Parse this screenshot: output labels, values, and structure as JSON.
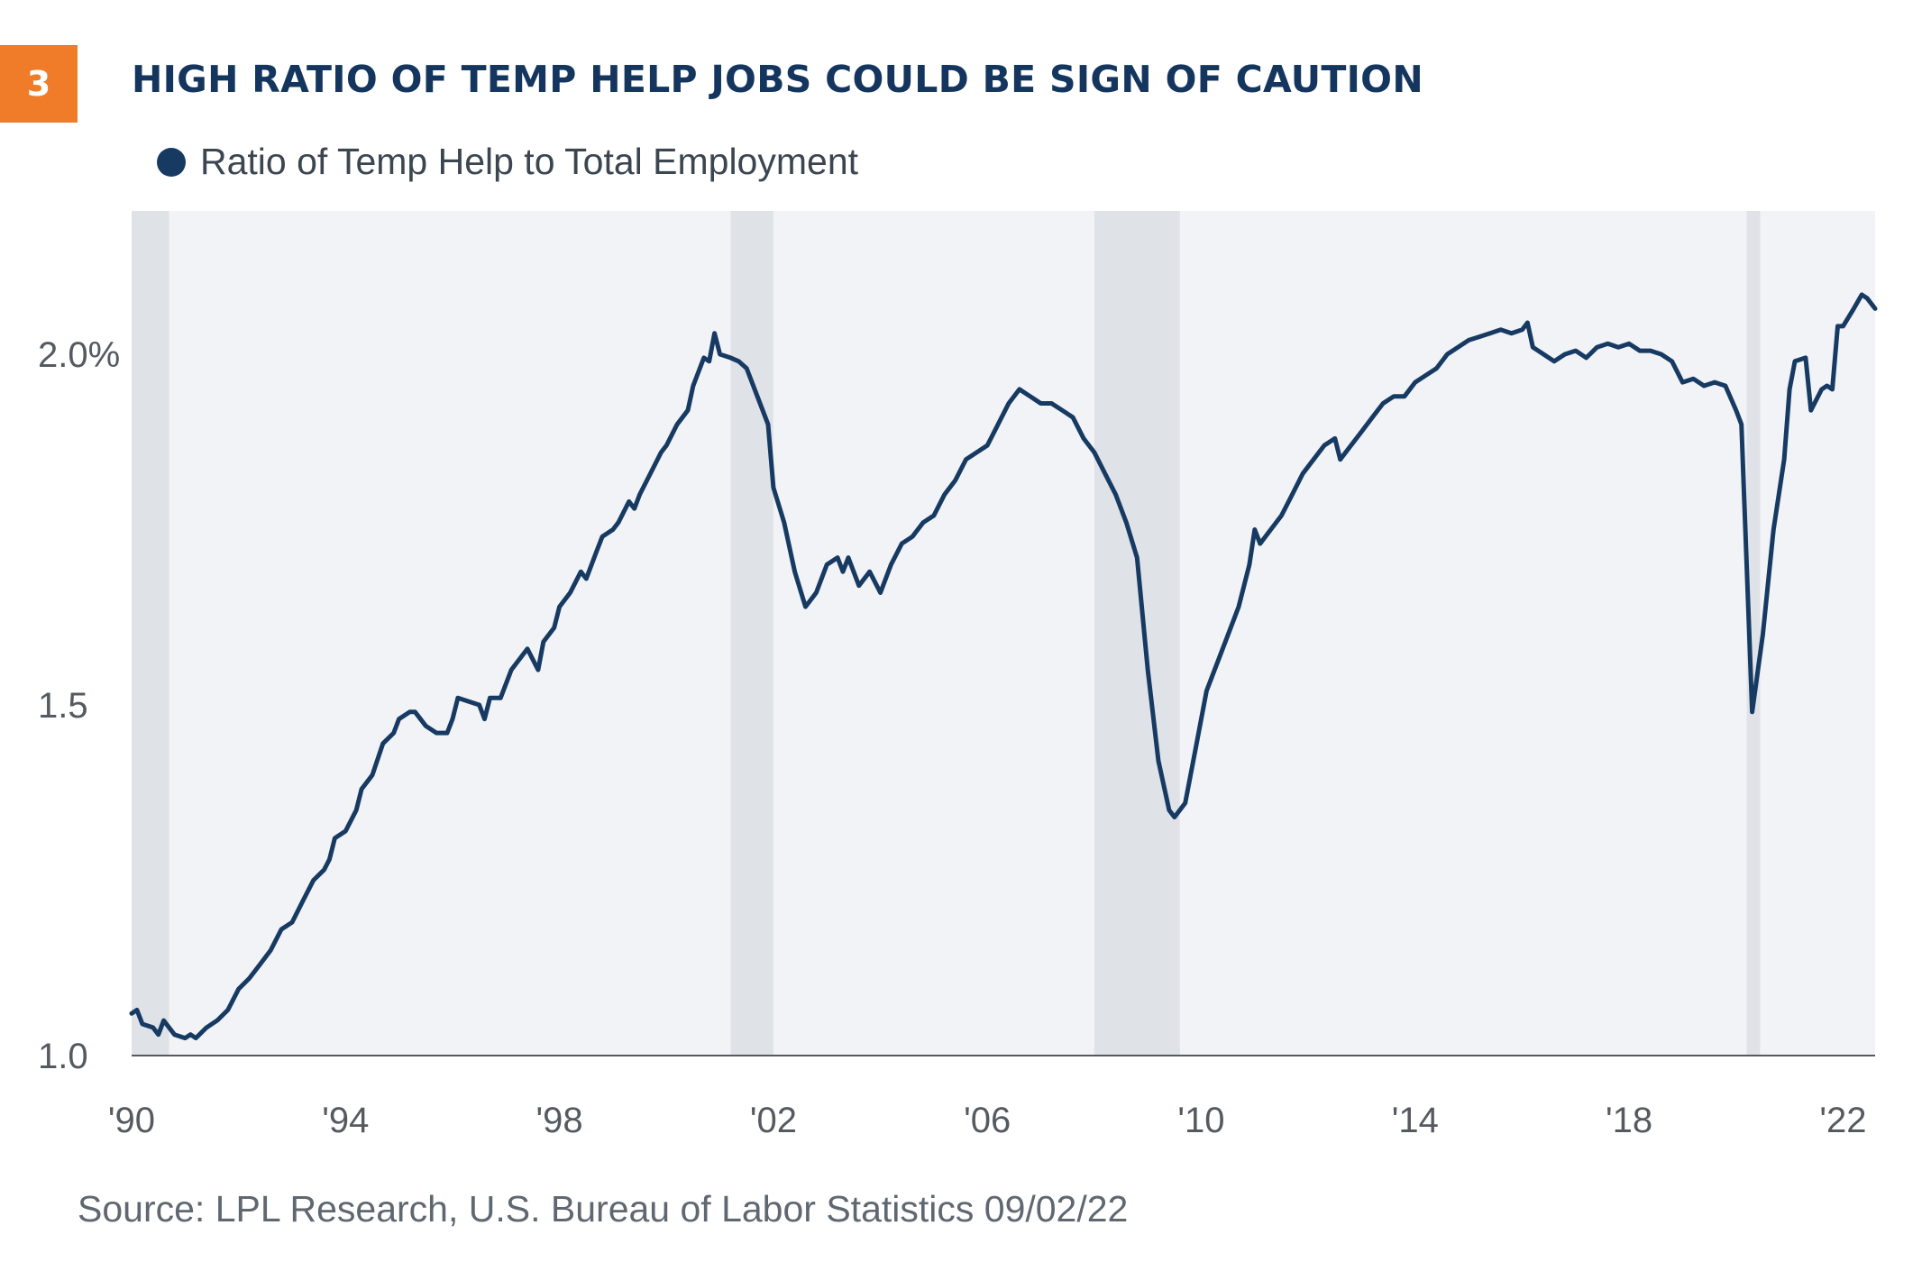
{
  "badge": {
    "number": "3"
  },
  "title": "HIGH RATIO OF TEMP HELP JOBS COULD BE SIGN OF CAUTION",
  "source": "Source: LPL Research, U.S. Bureau of Labor Statistics 09/02/22",
  "colors": {
    "badge": "#f07c2a",
    "title": "#14365e",
    "line": "#173a63",
    "plot_bg": "#f2f3f6",
    "recession": "#dfe2e7",
    "axis": "#555a60",
    "tick_label": "#555a60"
  },
  "chart_data": {
    "type": "line",
    "title": "HIGH RATIO OF TEMP HELP JOBS COULD BE SIGN OF CAUTION",
    "xlabel": "",
    "ylabel": "",
    "xlim": [
      1990.0,
      2022.6
    ],
    "ylim": [
      1.0,
      2.2
    ],
    "grid": false,
    "legend": "top-left",
    "y_ticks": [
      {
        "value": 1.0,
        "label": "1.0"
      },
      {
        "value": 1.5,
        "label": "1.5"
      },
      {
        "value": 2.0,
        "label": "2.0%"
      }
    ],
    "x_ticks": [
      {
        "value": 1990,
        "label": "'90"
      },
      {
        "value": 1994,
        "label": "'94"
      },
      {
        "value": 1998,
        "label": "'98"
      },
      {
        "value": 2002,
        "label": "'02"
      },
      {
        "value": 2006,
        "label": "'06"
      },
      {
        "value": 2010,
        "label": "'10"
      },
      {
        "value": 2014,
        "label": "'14"
      },
      {
        "value": 2018,
        "label": "'18"
      },
      {
        "value": 2022,
        "label": "'22"
      }
    ],
    "recessions": [
      {
        "start": 1990.0,
        "end": 1990.7
      },
      {
        "start": 2001.2,
        "end": 2002.0
      },
      {
        "start": 2008.0,
        "end": 2009.6
      },
      {
        "start": 2020.2,
        "end": 2020.45
      }
    ],
    "series": [
      {
        "name": "Ratio of Temp Help to Total Employment",
        "points": [
          [
            1990.0,
            1.06
          ],
          [
            1990.1,
            1.065
          ],
          [
            1990.2,
            1.045
          ],
          [
            1990.4,
            1.04
          ],
          [
            1990.5,
            1.03
          ],
          [
            1990.6,
            1.05
          ],
          [
            1990.8,
            1.03
          ],
          [
            1991.0,
            1.025
          ],
          [
            1991.1,
            1.03
          ],
          [
            1991.2,
            1.025
          ],
          [
            1991.4,
            1.04
          ],
          [
            1991.6,
            1.05
          ],
          [
            1991.8,
            1.065
          ],
          [
            1992.0,
            1.095
          ],
          [
            1992.2,
            1.11
          ],
          [
            1992.4,
            1.13
          ],
          [
            1992.6,
            1.15
          ],
          [
            1992.8,
            1.18
          ],
          [
            1993.0,
            1.19
          ],
          [
            1993.2,
            1.22
          ],
          [
            1993.4,
            1.25
          ],
          [
            1993.6,
            1.265
          ],
          [
            1993.7,
            1.28
          ],
          [
            1993.8,
            1.31
          ],
          [
            1994.0,
            1.32
          ],
          [
            1994.2,
            1.35
          ],
          [
            1994.3,
            1.38
          ],
          [
            1994.5,
            1.4
          ],
          [
            1994.7,
            1.445
          ],
          [
            1994.9,
            1.46
          ],
          [
            1995.0,
            1.48
          ],
          [
            1995.2,
            1.49
          ],
          [
            1995.3,
            1.49
          ],
          [
            1995.5,
            1.47
          ],
          [
            1995.7,
            1.46
          ],
          [
            1995.9,
            1.46
          ],
          [
            1996.0,
            1.48
          ],
          [
            1996.1,
            1.51
          ],
          [
            1996.3,
            1.505
          ],
          [
            1996.5,
            1.5
          ],
          [
            1996.6,
            1.48
          ],
          [
            1996.7,
            1.51
          ],
          [
            1996.9,
            1.51
          ],
          [
            1997.1,
            1.55
          ],
          [
            1997.3,
            1.57
          ],
          [
            1997.4,
            1.58
          ],
          [
            1997.6,
            1.55
          ],
          [
            1997.7,
            1.59
          ],
          [
            1997.9,
            1.61
          ],
          [
            1998.0,
            1.64
          ],
          [
            1998.2,
            1.66
          ],
          [
            1998.4,
            1.69
          ],
          [
            1998.5,
            1.68
          ],
          [
            1998.6,
            1.7
          ],
          [
            1998.7,
            1.72
          ],
          [
            1998.8,
            1.74
          ],
          [
            1999.0,
            1.75
          ],
          [
            1999.1,
            1.76
          ],
          [
            1999.3,
            1.79
          ],
          [
            1999.4,
            1.78
          ],
          [
            1999.5,
            1.8
          ],
          [
            1999.7,
            1.83
          ],
          [
            1999.9,
            1.86
          ],
          [
            2000.0,
            1.87
          ],
          [
            2000.2,
            1.9
          ],
          [
            2000.4,
            1.92
          ],
          [
            2000.5,
            1.955
          ],
          [
            2000.7,
            1.995
          ],
          [
            2000.8,
            1.99
          ],
          [
            2000.9,
            2.03
          ],
          [
            2001.0,
            2.0
          ],
          [
            2001.2,
            1.995
          ],
          [
            2001.35,
            1.99
          ],
          [
            2001.5,
            1.98
          ],
          [
            2001.7,
            1.94
          ],
          [
            2001.9,
            1.9
          ],
          [
            2002.0,
            1.81
          ],
          [
            2002.2,
            1.76
          ],
          [
            2002.4,
            1.69
          ],
          [
            2002.6,
            1.64
          ],
          [
            2002.8,
            1.66
          ],
          [
            2003.0,
            1.7
          ],
          [
            2003.2,
            1.71
          ],
          [
            2003.3,
            1.69
          ],
          [
            2003.4,
            1.71
          ],
          [
            2003.6,
            1.67
          ],
          [
            2003.8,
            1.69
          ],
          [
            2004.0,
            1.66
          ],
          [
            2004.2,
            1.7
          ],
          [
            2004.4,
            1.73
          ],
          [
            2004.6,
            1.74
          ],
          [
            2004.8,
            1.76
          ],
          [
            2005.0,
            1.77
          ],
          [
            2005.2,
            1.8
          ],
          [
            2005.4,
            1.82
          ],
          [
            2005.6,
            1.85
          ],
          [
            2005.8,
            1.86
          ],
          [
            2006.0,
            1.87
          ],
          [
            2006.2,
            1.9
          ],
          [
            2006.4,
            1.93
          ],
          [
            2006.6,
            1.95
          ],
          [
            2006.8,
            1.94
          ],
          [
            2007.0,
            1.93
          ],
          [
            2007.2,
            1.93
          ],
          [
            2007.4,
            1.92
          ],
          [
            2007.6,
            1.91
          ],
          [
            2007.8,
            1.88
          ],
          [
            2008.0,
            1.86
          ],
          [
            2008.2,
            1.83
          ],
          [
            2008.4,
            1.8
          ],
          [
            2008.6,
            1.76
          ],
          [
            2008.8,
            1.71
          ],
          [
            2009.0,
            1.55
          ],
          [
            2009.2,
            1.42
          ],
          [
            2009.4,
            1.35
          ],
          [
            2009.5,
            1.34
          ],
          [
            2009.7,
            1.36
          ],
          [
            2009.9,
            1.44
          ],
          [
            2010.1,
            1.52
          ],
          [
            2010.3,
            1.56
          ],
          [
            2010.5,
            1.6
          ],
          [
            2010.7,
            1.64
          ],
          [
            2010.9,
            1.7
          ],
          [
            2011.0,
            1.75
          ],
          [
            2011.1,
            1.73
          ],
          [
            2011.3,
            1.75
          ],
          [
            2011.5,
            1.77
          ],
          [
            2011.7,
            1.8
          ],
          [
            2011.9,
            1.83
          ],
          [
            2012.1,
            1.85
          ],
          [
            2012.3,
            1.87
          ],
          [
            2012.5,
            1.88
          ],
          [
            2012.6,
            1.85
          ],
          [
            2012.8,
            1.87
          ],
          [
            2013.0,
            1.89
          ],
          [
            2013.2,
            1.91
          ],
          [
            2013.4,
            1.93
          ],
          [
            2013.6,
            1.94
          ],
          [
            2013.8,
            1.94
          ],
          [
            2014.0,
            1.96
          ],
          [
            2014.2,
            1.97
          ],
          [
            2014.4,
            1.98
          ],
          [
            2014.6,
            2.0
          ],
          [
            2014.8,
            2.01
          ],
          [
            2015.0,
            2.02
          ],
          [
            2015.2,
            2.025
          ],
          [
            2015.4,
            2.03
          ],
          [
            2015.6,
            2.035
          ],
          [
            2015.8,
            2.03
          ],
          [
            2016.0,
            2.035
          ],
          [
            2016.1,
            2.045
          ],
          [
            2016.2,
            2.01
          ],
          [
            2016.4,
            2.0
          ],
          [
            2016.6,
            1.99
          ],
          [
            2016.8,
            2.0
          ],
          [
            2017.0,
            2.005
          ],
          [
            2017.2,
            1.995
          ],
          [
            2017.4,
            2.01
          ],
          [
            2017.6,
            2.015
          ],
          [
            2017.8,
            2.01
          ],
          [
            2018.0,
            2.015
          ],
          [
            2018.2,
            2.005
          ],
          [
            2018.4,
            2.005
          ],
          [
            2018.6,
            2.0
          ],
          [
            2018.8,
            1.99
          ],
          [
            2019.0,
            1.96
          ],
          [
            2019.2,
            1.965
          ],
          [
            2019.4,
            1.955
          ],
          [
            2019.6,
            1.96
          ],
          [
            2019.8,
            1.955
          ],
          [
            2020.0,
            1.92
          ],
          [
            2020.1,
            1.9
          ],
          [
            2020.3,
            1.49
          ],
          [
            2020.5,
            1.6
          ],
          [
            2020.7,
            1.75
          ],
          [
            2020.9,
            1.85
          ],
          [
            2021.0,
            1.95
          ],
          [
            2021.1,
            1.99
          ],
          [
            2021.3,
            1.995
          ],
          [
            2021.4,
            1.92
          ],
          [
            2021.6,
            1.95
          ],
          [
            2021.7,
            1.955
          ],
          [
            2021.8,
            1.95
          ],
          [
            2021.9,
            2.04
          ],
          [
            2022.0,
            2.04
          ],
          [
            2022.2,
            2.065
          ],
          [
            2022.35,
            2.085
          ],
          [
            2022.45,
            2.08
          ],
          [
            2022.6,
            2.065
          ],
          [
            2022.8,
            2.065
          ],
          [
            2022.9,
            2.065
          ]
        ]
      }
    ]
  }
}
